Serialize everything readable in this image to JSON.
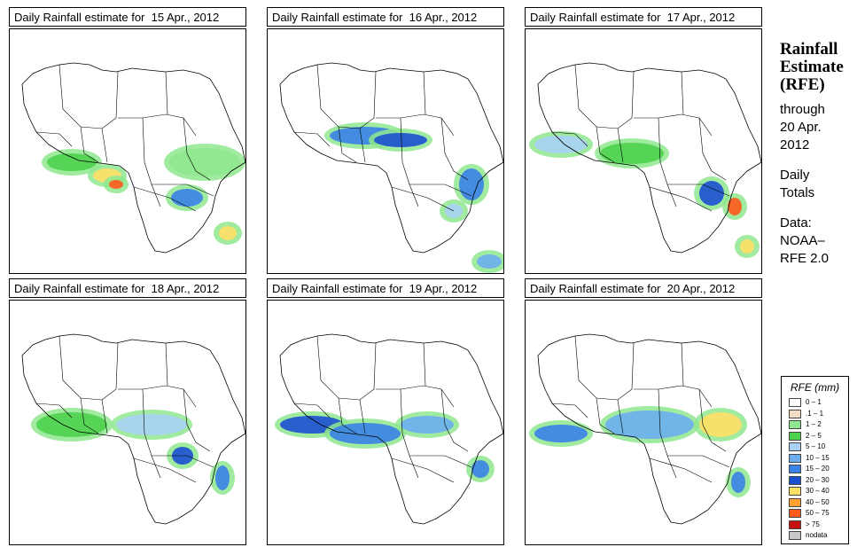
{
  "panels": [
    {
      "title": "Daily Rainfall estimate for  15 Apr., 2012",
      "date": "15 Apr., 2012"
    },
    {
      "title": "Daily Rainfall estimate for  16 Apr., 2012",
      "date": "16 Apr., 2012"
    },
    {
      "title": "Daily Rainfall estimate for  17 Apr., 2012",
      "date": "17 Apr., 2012"
    },
    {
      "title": "Daily Rainfall estimate for  18 Apr., 2012",
      "date": "18 Apr., 2012"
    },
    {
      "title": "Daily Rainfall estimate for  19 Apr., 2012",
      "date": "19 Apr., 2012"
    },
    {
      "title": "Daily Rainfall estimate for  20 Apr., 2012",
      "date": "20 Apr., 2012"
    }
  ],
  "side": {
    "title_line1": "Rainfall",
    "title_line2": "Estimate",
    "title_line3": "(RFE)",
    "through": "through",
    "end_date_line1": "20 Apr.",
    "end_date_line2": "2012",
    "daily": "Daily",
    "totals": "Totals",
    "data_label": "Data:",
    "source_line1": "NOAA–",
    "source_line2": "RFE 2.0"
  },
  "legend": {
    "title": "RFE (mm)",
    "items": [
      {
        "label": "0 – 1",
        "color": "#ffffff"
      },
      {
        "label": ".1 – 1",
        "color": "#f2dcc4"
      },
      {
        "label": "1 – 2",
        "color": "#8fe88f"
      },
      {
        "label": "2 – 5",
        "color": "#4cd24c"
      },
      {
        "label": "5 – 10",
        "color": "#a9d2f5"
      },
      {
        "label": "10 – 15",
        "color": "#6aaef0"
      },
      {
        "label": "15 – 20",
        "color": "#3a82e6"
      },
      {
        "label": "20 – 30",
        "color": "#1c50d0"
      },
      {
        "label": "30 – 40",
        "color": "#ffe066"
      },
      {
        "label": "40 – 50",
        "color": "#ffa030"
      },
      {
        "label": "50 – 75",
        "color": "#ff5a1a"
      },
      {
        "label": "> 75",
        "color": "#c81010"
      },
      {
        "label": "nodata",
        "color": "#c8c8c8"
      }
    ]
  }
}
